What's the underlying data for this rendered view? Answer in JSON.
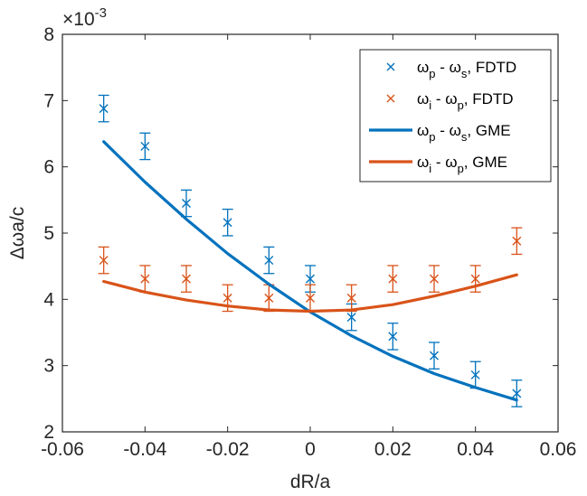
{
  "chart_data": {
    "type": "scatter",
    "title": "",
    "xlabel": "dR/a",
    "ylabel": "Δωa/c",
    "exponent_label": "×10",
    "exponent_power": "-3",
    "xlim": [
      -0.06,
      0.06
    ],
    "ylim": [
      2,
      8
    ],
    "xticks": [
      -0.06,
      -0.04,
      -0.02,
      0,
      0.02,
      0.04,
      0.06
    ],
    "xtick_labels": [
      "-0.06",
      "-0.04",
      "-0.02",
      "0",
      "0.02",
      "0.04",
      "0.06"
    ],
    "yticks": [
      2,
      3,
      4,
      5,
      6,
      7,
      8
    ],
    "ytick_labels": [
      "2",
      "3",
      "4",
      "5",
      "6",
      "7",
      "8"
    ],
    "grid": false,
    "legend_position": "top-right",
    "colors": {
      "blue": "#0072BD",
      "orange": "#D95319"
    },
    "series": [
      {
        "name": "ωp - ωs, FDTD",
        "legend_sym1": "ω",
        "legend_sub1": "p",
        "legend_mid": " - ω",
        "legend_sub2": "s",
        "legend_tail": ", FDTD",
        "kind": "errorbar",
        "color": "#0072BD",
        "x": [
          -0.05,
          -0.04,
          -0.03,
          -0.02,
          -0.01,
          0,
          0.01,
          0.02,
          0.03,
          0.04,
          0.05
        ],
        "y": [
          6.88,
          6.31,
          5.45,
          5.16,
          4.59,
          4.31,
          3.73,
          3.44,
          3.15,
          2.86,
          2.58
        ],
        "err": [
          0.2,
          0.2,
          0.2,
          0.2,
          0.2,
          0.2,
          0.2,
          0.2,
          0.2,
          0.2,
          0.2
        ]
      },
      {
        "name": "ωi - ωp, FDTD",
        "legend_sym1": "ω",
        "legend_sub1": "i",
        "legend_mid": " - ω",
        "legend_sub2": "p",
        "legend_tail": ", FDTD",
        "kind": "errorbar",
        "color": "#D95319",
        "x": [
          -0.05,
          -0.04,
          -0.03,
          -0.02,
          -0.01,
          0,
          0.01,
          0.02,
          0.03,
          0.04,
          0.05
        ],
        "y": [
          4.59,
          4.31,
          4.31,
          4.02,
          4.02,
          4.02,
          4.02,
          4.31,
          4.31,
          4.31,
          4.88
        ],
        "err": [
          0.2,
          0.2,
          0.2,
          0.2,
          0.2,
          0.2,
          0.2,
          0.2,
          0.2,
          0.2,
          0.2
        ]
      },
      {
        "name": "ωp - ωs, GME",
        "legend_sym1": "ω",
        "legend_sub1": "p",
        "legend_mid": " - ω",
        "legend_sub2": "s",
        "legend_tail": ", GME",
        "kind": "line",
        "color": "#0072BD",
        "x": [
          -0.05,
          -0.04,
          -0.03,
          -0.02,
          -0.01,
          0,
          0.01,
          0.02,
          0.03,
          0.04,
          0.05
        ],
        "y": [
          6.38,
          5.77,
          5.21,
          4.69,
          4.23,
          3.81,
          3.45,
          3.14,
          2.88,
          2.67,
          2.48
        ]
      },
      {
        "name": "ωi - ωp, GME",
        "legend_sym1": "ω",
        "legend_sub1": "i",
        "legend_mid": " - ω",
        "legend_sub2": "p",
        "legend_tail": ", GME",
        "kind": "line",
        "color": "#D95319",
        "x": [
          -0.05,
          -0.04,
          -0.03,
          -0.02,
          -0.01,
          0,
          0.01,
          0.02,
          0.03,
          0.04,
          0.05
        ],
        "y": [
          4.27,
          4.11,
          3.99,
          3.9,
          3.84,
          3.82,
          3.84,
          3.92,
          4.05,
          4.2,
          4.37
        ]
      }
    ]
  }
}
